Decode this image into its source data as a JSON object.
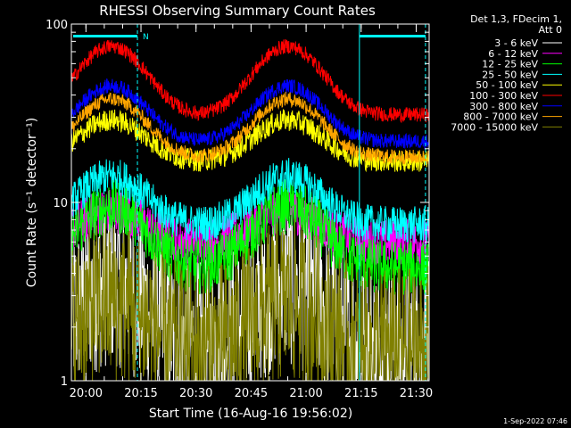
{
  "chart_data": {
    "type": "line",
    "title": "RHESSI Observing Summary Count Rates",
    "xlabel": "Start Time (16-Aug-16 19:56:02)",
    "ylabel": "Count Rate (s⁻¹ detector⁻¹)",
    "y_scale": "log",
    "ylim": [
      1,
      100
    ],
    "xlim_minutes": [
      0,
      97.5
    ],
    "x_ticks": [
      {
        "label": "20:00",
        "minute": 3.97
      },
      {
        "label": "20:15",
        "minute": 18.97
      },
      {
        "label": "20:30",
        "minute": 33.97
      },
      {
        "label": "20:45",
        "minute": 48.97
      },
      {
        "label": "21:00",
        "minute": 63.97
      },
      {
        "label": "21:15",
        "minute": 78.97
      },
      {
        "label": "21:30",
        "minute": 93.97
      }
    ],
    "y_tick_labels": [
      "1",
      "10",
      "100"
    ],
    "header": {
      "line1": "Det 1,3, FDecim 1,",
      "line2": "Att 0"
    },
    "flag_marker_label": "N",
    "flag_bars": [
      {
        "start_minute": 0.5,
        "end_minute": 18.0,
        "color": "#00ffff"
      },
      {
        "start_minute": 78.5,
        "end_minute": 96.5,
        "color": "#00ffff"
      }
    ],
    "vertical_markers_minute": [
      18.0,
      78.5,
      96.5
    ],
    "series": [
      {
        "name": "3 - 6 keV",
        "color": "#ffffff",
        "base": 1.6,
        "peak": 3.5,
        "noise": 0.9
      },
      {
        "name": "6 - 12 keV",
        "color": "#ff00ff",
        "base": 6.0,
        "peak": 9.0,
        "noise": 0.25
      },
      {
        "name": "12 - 25 keV",
        "color": "#00ff00",
        "base": 4.3,
        "peak": 9.5,
        "noise": 0.3
      },
      {
        "name": "25 - 50 keV",
        "color": "#00ffff",
        "base": 7.5,
        "peak": 14.0,
        "noise": 0.2
      },
      {
        "name": "50 - 100 keV",
        "color": "#ffff00",
        "base": 17.0,
        "peak": 29.0,
        "noise": 0.12
      },
      {
        "name": "100 - 300 keV",
        "color": "#ff0000",
        "base": 31.0,
        "peak": 75.0,
        "noise": 0.08
      },
      {
        "name": "300 - 800 keV",
        "color": "#0000ff",
        "base": 22.0,
        "peak": 45.0,
        "noise": 0.08
      },
      {
        "name": "800 - 7000 keV",
        "color": "#ffa500",
        "base": 18.0,
        "peak": 38.0,
        "noise": 0.08
      },
      {
        "name": "7000 - 15000 keV",
        "color": "#808000",
        "base": 1.5,
        "peak": 2.8,
        "noise": 0.9
      }
    ],
    "peaks_minute": [
      11.0,
      59.0
    ],
    "peak_width_minute": 11.5,
    "legend_placement": "top-right",
    "grid": false
  },
  "footer": {
    "timestamp": "1-Sep-2022 07:46"
  }
}
